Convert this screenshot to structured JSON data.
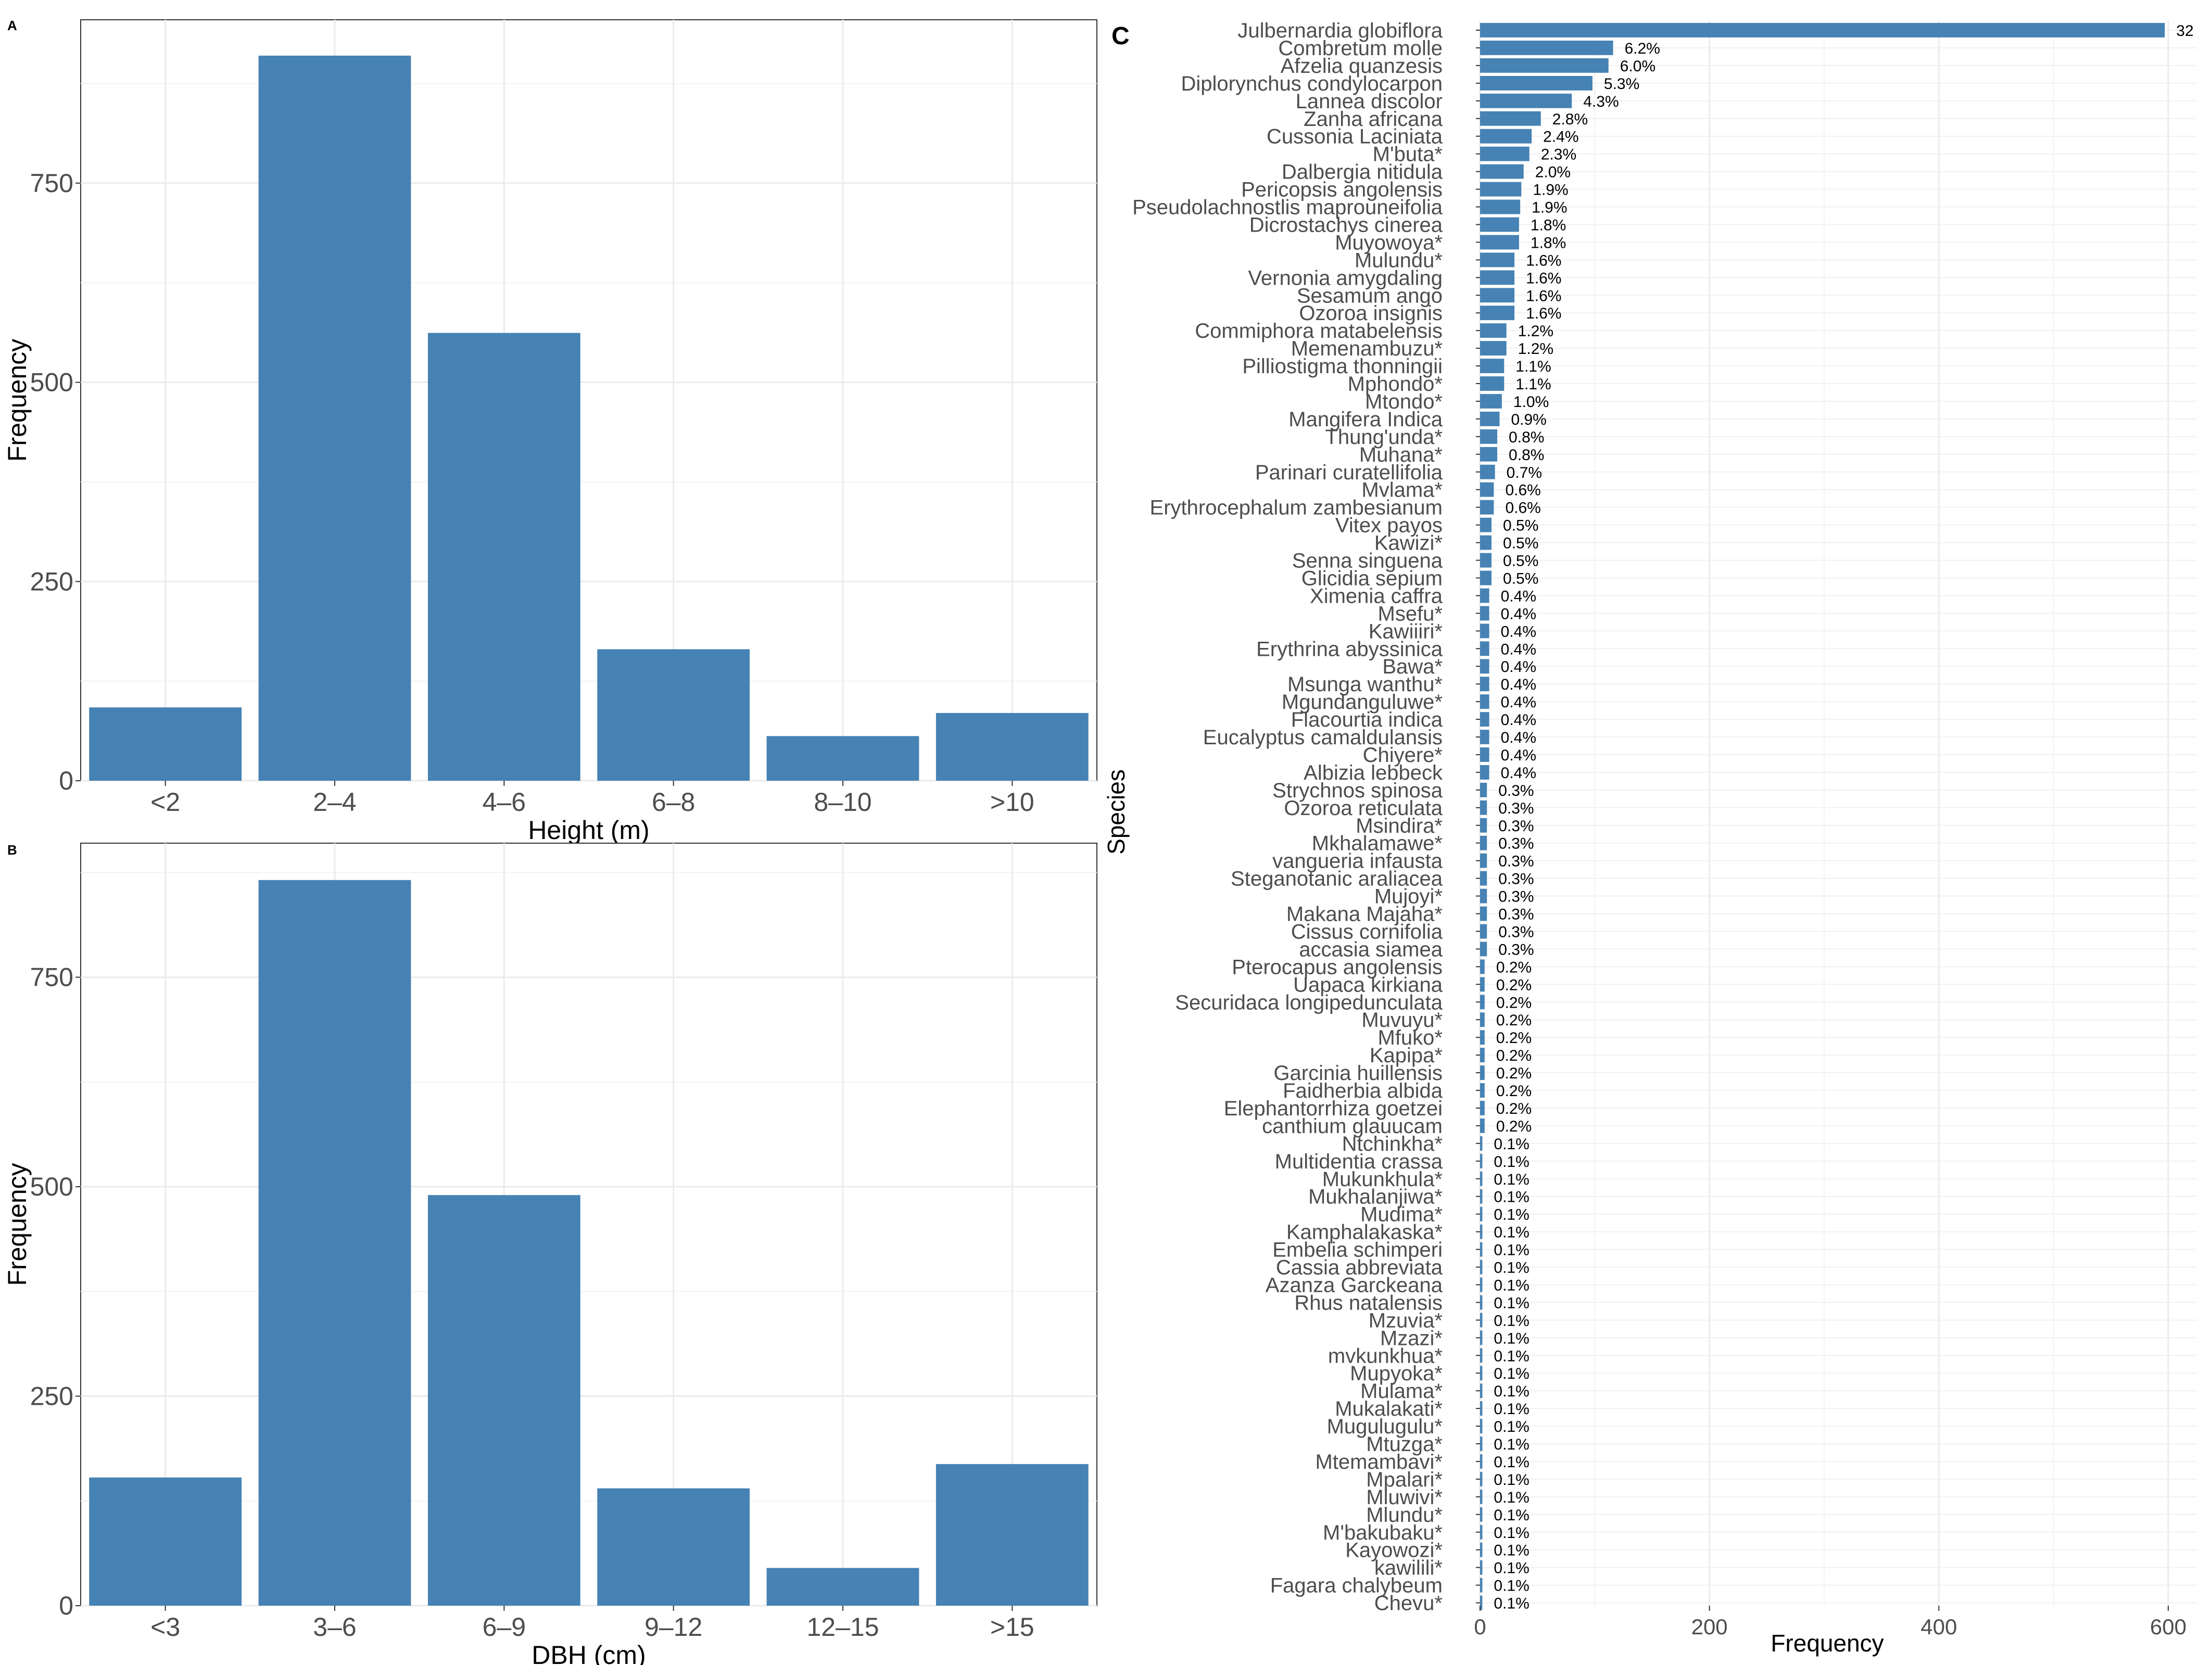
{
  "colors": {
    "bar": "#4682B4",
    "grid": "#ebebeb",
    "axis": "#333333",
    "text": "#4d4d4d"
  },
  "chart_data": [
    {
      "panel": "A",
      "type": "bar",
      "categories": [
        "<2",
        "2–4",
        "4–6",
        "6–8",
        "8–10",
        ">10"
      ],
      "values": [
        92,
        910,
        562,
        165,
        56,
        85
      ],
      "xlabel": "Height (m)",
      "ylabel": "Frequency",
      "yticks": [
        0,
        250,
        500,
        750
      ],
      "ylim": [
        0,
        955
      ]
    },
    {
      "panel": "B",
      "type": "bar",
      "categories": [
        "<3",
        "3–6",
        "6–9",
        "9–12",
        "12–15",
        ">15"
      ],
      "values": [
        153,
        866,
        490,
        140,
        45,
        169
      ],
      "xlabel": "DBH (cm)",
      "ylabel": "Frequency",
      "yticks": [
        0,
        250,
        500,
        750
      ],
      "ylim": [
        0,
        910
      ]
    },
    {
      "panel": "C",
      "type": "bar",
      "orientation": "horizontal",
      "xlabel": "Frequency",
      "ylabel": "Species",
      "xticks": [
        0,
        200,
        400,
        600
      ],
      "xlim": [
        0,
        625
      ],
      "categories": [
        "Julbernardia globiflora",
        "Combretum molle",
        "Afzelia quanzesis",
        "Diplorynchus condylocarpon",
        "Lannea discolor",
        "Zanha africana",
        "Cussonia Laciniata",
        "M'buta*",
        "Dalbergia nitidula",
        "Pericopsis angolensis",
        "Pseudolachnostlis maprouneifolia",
        "Dicrostachys cinerea",
        "Muyowoya*",
        "Mulundu*",
        "Vernonia amygdaling",
        "Sesamum ango",
        "Ozoroa insignis",
        "Commiphora matabelensis",
        "Memenambuzu*",
        "Pilliostigma thonningii",
        "Mphondo*",
        "Mtondo*",
        "Mangifera Indica",
        "Thung'unda*",
        "Muhana*",
        "Parinari curatellifolia",
        "Mvlama*",
        "Erythrocephalum zambesianum",
        "Vitex payos",
        "Kawizi*",
        "Senna singuena",
        "Glicidia sepium",
        "Ximenia caffra",
        "Msefu*",
        "Kawiiiri*",
        "Erythrina abyssinica",
        "Bawa*",
        "Msunga wanthu*",
        "Mgundanguluwe*",
        "Flacourtia indica",
        "Eucalyptus camaldulansis",
        "Chiyere*",
        "Albizia lebbeck",
        "Strychnos spinosa",
        "Ozoroa reticulata",
        "Msindira*",
        "Mkhalamawe*",
        "vangueria infausta",
        "Steganotanic araliacea",
        "Mujoyi*",
        "Makana Majaha*",
        "Cissus cornifolia",
        "accasia siamea",
        "Pterocapus angolensis",
        "Uapaca kirkiana",
        "Securidaca longipedunculata",
        "Muvuyu*",
        "Mfuko*",
        "Kapipa*",
        "Garcinia huillensis",
        "Faidherbia albida",
        "Elephantorrhiza goetzei",
        "canthium glauucam",
        "Ntchinkha*",
        "Multidentia crassa",
        "Mukunkhula*",
        "Mukhalanjiwa*",
        "Mudima*",
        "Kamphalakaska*",
        "Embelia schimperi",
        "Cassia abbreviata",
        "Azanza Garckeana",
        "Rhus natalensis",
        "Mzuvia*",
        "Mzazi*",
        "mvkunkhua*",
        "Mupyoka*",
        "Mulama*",
        "Mukalakati*",
        "Mugulugulu*",
        "Mtuzga*",
        "Mtemambavi*",
        "Mpalari*",
        "Mluwivi*",
        "Mlundu*",
        "M'bakubaku*",
        "Kayowozi*",
        "kawilili*",
        "Fagara chalybeum",
        "Chevu*"
      ],
      "values": [
        597,
        116,
        112,
        98,
        80,
        53,
        45,
        43,
        38,
        36,
        35,
        34,
        34,
        30,
        30,
        30,
        30,
        23,
        23,
        21,
        21,
        19,
        17,
        15,
        15,
        13,
        12,
        12,
        10,
        10,
        10,
        10,
        8,
        8,
        8,
        8,
        8,
        8,
        8,
        8,
        8,
        8,
        8,
        6,
        6,
        6,
        6,
        6,
        6,
        6,
        6,
        6,
        6,
        4,
        4,
        4,
        4,
        4,
        4,
        4,
        4,
        4,
        4,
        2,
        2,
        2,
        2,
        2,
        2,
        2,
        2,
        2,
        2,
        2,
        2,
        2,
        2,
        2,
        2,
        2,
        2,
        2,
        2,
        2,
        2,
        2,
        2,
        2,
        2,
        2
      ],
      "labels": [
        "32",
        "6.2%",
        "6.0%",
        "5.3%",
        "4.3%",
        "2.8%",
        "2.4%",
        "2.3%",
        "2.0%",
        "1.9%",
        "1.9%",
        "1.8%",
        "1.8%",
        "1.6%",
        "1.6%",
        "1.6%",
        "1.6%",
        "1.2%",
        "1.2%",
        "1.1%",
        "1.1%",
        "1.0%",
        "0.9%",
        "0.8%",
        "0.8%",
        "0.7%",
        "0.6%",
        "0.6%",
        "0.5%",
        "0.5%",
        "0.5%",
        "0.5%",
        "0.4%",
        "0.4%",
        "0.4%",
        "0.4%",
        "0.4%",
        "0.4%",
        "0.4%",
        "0.4%",
        "0.4%",
        "0.4%",
        "0.4%",
        "0.3%",
        "0.3%",
        "0.3%",
        "0.3%",
        "0.3%",
        "0.3%",
        "0.3%",
        "0.3%",
        "0.3%",
        "0.3%",
        "0.2%",
        "0.2%",
        "0.2%",
        "0.2%",
        "0.2%",
        "0.2%",
        "0.2%",
        "0.2%",
        "0.2%",
        "0.2%",
        "0.1%",
        "0.1%",
        "0.1%",
        "0.1%",
        "0.1%",
        "0.1%",
        "0.1%",
        "0.1%",
        "0.1%",
        "0.1%",
        "0.1%",
        "0.1%",
        "0.1%",
        "0.1%",
        "0.1%",
        "0.1%",
        "0.1%",
        "0.1%",
        "0.1%",
        "0.1%",
        "0.1%",
        "0.1%",
        "0.1%",
        "0.1%",
        "0.1%",
        "0.1%",
        "0.1%"
      ]
    }
  ]
}
